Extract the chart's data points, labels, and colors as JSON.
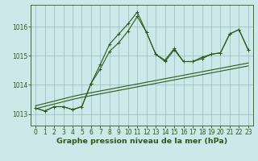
{
  "bg_color": "#cce8e8",
  "grid_color": "#99bbbb",
  "line_color": "#2d5a1b",
  "xlabel": "Graphe pression niveau de la mer (hPa)",
  "ylim": [
    1012.6,
    1016.75
  ],
  "xlim": [
    -0.5,
    23.5
  ],
  "yticks": [
    1013,
    1014,
    1015,
    1016
  ],
  "xticks": [
    0,
    1,
    2,
    3,
    4,
    5,
    6,
    7,
    8,
    9,
    10,
    11,
    12,
    13,
    14,
    15,
    16,
    17,
    18,
    19,
    20,
    21,
    22,
    23
  ],
  "series1": [
    1013.2,
    1013.1,
    1013.25,
    1013.25,
    1013.15,
    1013.25,
    1014.05,
    1014.55,
    1015.15,
    1015.45,
    1015.85,
    1016.35,
    1015.8,
    1015.05,
    1014.8,
    1015.2,
    1014.8,
    1014.8,
    1014.95,
    1015.05,
    1015.1,
    1015.75,
    1015.9,
    1015.2
  ],
  "series2": [
    1013.2,
    1013.1,
    1013.25,
    1013.25,
    1013.15,
    1013.25,
    1014.05,
    1014.7,
    1015.4,
    1015.75,
    1016.1,
    1016.5,
    1015.8,
    1015.05,
    1014.85,
    1015.25,
    1014.8,
    1014.8,
    1014.9,
    1015.05,
    1015.1,
    1015.75,
    1015.9,
    1015.2
  ],
  "series_linear1": [
    1013.18,
    1013.26,
    1013.34,
    1013.42,
    1013.5,
    1013.57,
    1013.63,
    1013.69,
    1013.75,
    1013.81,
    1013.87,
    1013.93,
    1013.99,
    1014.05,
    1014.11,
    1014.17,
    1014.23,
    1014.29,
    1014.35,
    1014.41,
    1014.47,
    1014.53,
    1014.59,
    1014.65
  ],
  "series_linear2": [
    1013.28,
    1013.36,
    1013.44,
    1013.52,
    1013.6,
    1013.67,
    1013.73,
    1013.79,
    1013.85,
    1013.91,
    1013.97,
    1014.03,
    1014.09,
    1014.15,
    1014.21,
    1014.27,
    1014.33,
    1014.39,
    1014.45,
    1014.51,
    1014.57,
    1014.63,
    1014.69,
    1014.75
  ],
  "tick_fontsize": 5.5,
  "xlabel_fontsize": 6.8,
  "marker_size": 3.0,
  "line_width": 0.8
}
